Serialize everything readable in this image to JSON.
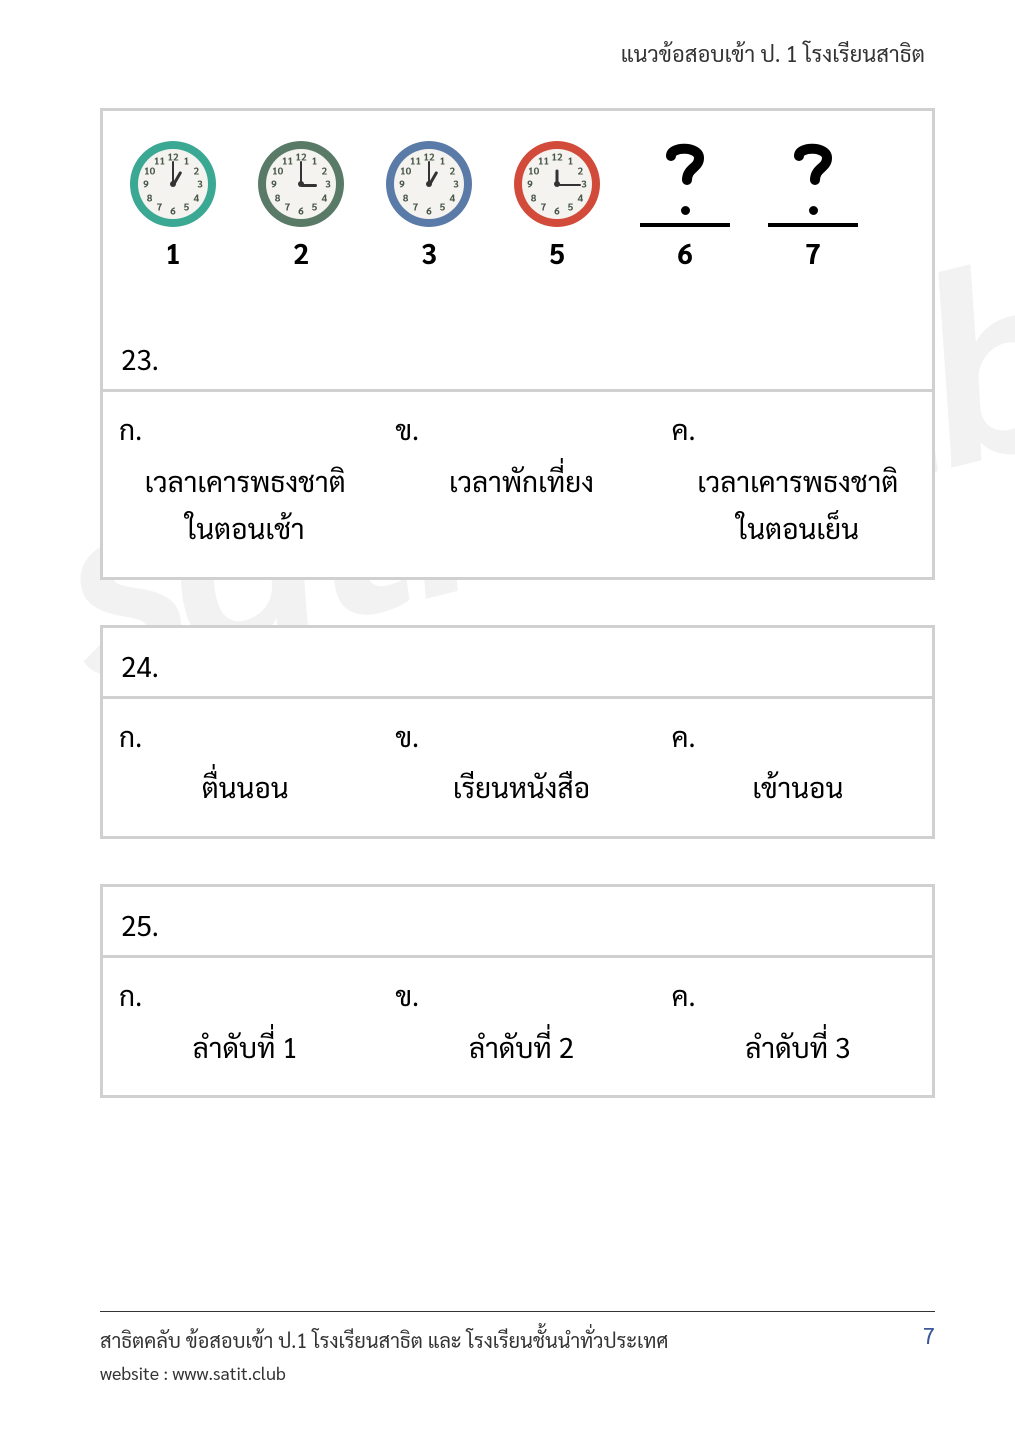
{
  "header": {
    "title": "แนวข้อสอบเข้า ป. 1 โรงเรียนสาธิต"
  },
  "watermark": {
    "text": "satit.club"
  },
  "clocks": {
    "items": [
      {
        "ring_color": "#3aa893",
        "hour_angle": -60,
        "minute_angle": -90,
        "label": "1"
      },
      {
        "ring_color": "#5a7a68",
        "hour_angle": 0,
        "minute_angle": -90,
        "label": "2"
      },
      {
        "ring_color": "#5a7aa8",
        "hour_angle": -60,
        "minute_angle": -90,
        "label": "3"
      },
      {
        "ring_color": "#d24a3a",
        "hour_angle": -90,
        "minute_angle": 0,
        "label": "5"
      }
    ],
    "mystery": [
      {
        "label": "6"
      },
      {
        "label": "7"
      }
    ],
    "face_bg": "#f5f3ef",
    "hand_color": "#333333",
    "tick_color": "#4a5a4a"
  },
  "questions": {
    "q23": {
      "number": "23.",
      "choices": {
        "a": {
          "label": "ก.",
          "line1": "เวลาเคารพธงชาติ",
          "line2": "ในตอนเช้า"
        },
        "b": {
          "label": "ข.",
          "line1": "เวลาพักเที่ยง",
          "line2": ""
        },
        "c": {
          "label": "ค.",
          "line1": "เวลาเคารพธงชาติ",
          "line2": "ในตอนเย็น"
        }
      }
    },
    "q24": {
      "number": "24.",
      "choices": {
        "a": {
          "label": "ก.",
          "text": "ตื่นนอน"
        },
        "b": {
          "label": "ข.",
          "text": "เรียนหนังสือ"
        },
        "c": {
          "label": "ค.",
          "text": "เข้านอน"
        }
      }
    },
    "q25": {
      "number": "25.",
      "choices": {
        "a": {
          "label": "ก.",
          "text": "ลำดับที่ 1"
        },
        "b": {
          "label": "ข.",
          "text": "ลำดับที่ 2"
        },
        "c": {
          "label": "ค.",
          "text": "ลำดับที่ 3"
        }
      }
    }
  },
  "footer": {
    "line1": "สาธิตคลับ ข้อสอบเข้า ป.1 โรงเรียนสาธิต และ โรงเรียนชั้นนำทั่วประเทศ",
    "website_label": "website : ",
    "website": "www.satit.club",
    "page": "7"
  }
}
